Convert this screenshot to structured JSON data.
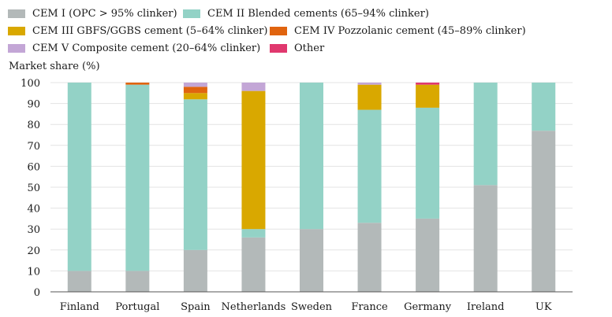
{
  "chart_data": {
    "type": "bar",
    "stacked": true,
    "ylabel": "Market share (%)",
    "ylim": [
      0,
      100
    ],
    "yticks": [
      0,
      10,
      20,
      30,
      40,
      50,
      60,
      70,
      80,
      90,
      100
    ],
    "grid": true,
    "legend_position": "top",
    "categories": [
      "Finland",
      "Portugal",
      "Spain",
      "Netherlands",
      "Sweden",
      "France",
      "Germany",
      "Ireland",
      "UK"
    ],
    "series": [
      {
        "name": "CEM I (OPC > 95% clinker)",
        "color": "#b3b9b9",
        "values": [
          10,
          10,
          20,
          26,
          30,
          33,
          35,
          51,
          77
        ]
      },
      {
        "name": "CEM II Blended cements (65–94% clinker)",
        "color": "#93d2c6",
        "values": [
          90,
          89,
          72,
          4,
          70,
          54,
          53,
          49,
          23
        ]
      },
      {
        "name": "CEM III GBFS/GGBS cement (5–64% clinker)",
        "color": "#d9a800",
        "values": [
          0,
          0,
          3,
          66,
          0,
          12,
          11,
          0,
          0
        ]
      },
      {
        "name": "CEM IV Pozzolanic cement (45–89% clinker)",
        "color": "#e0640f",
        "values": [
          0,
          1,
          3,
          0,
          0,
          0,
          0,
          0,
          0
        ]
      },
      {
        "name": "CEM V Composite cement (20–64% clinker)",
        "color": "#c3a6d6",
        "values": [
          0,
          0,
          2,
          4,
          0,
          1,
          0,
          0,
          0
        ]
      },
      {
        "name": "Other",
        "color": "#e0386e",
        "values": [
          0,
          0,
          0,
          0,
          0,
          0,
          1,
          0,
          0
        ]
      }
    ]
  }
}
